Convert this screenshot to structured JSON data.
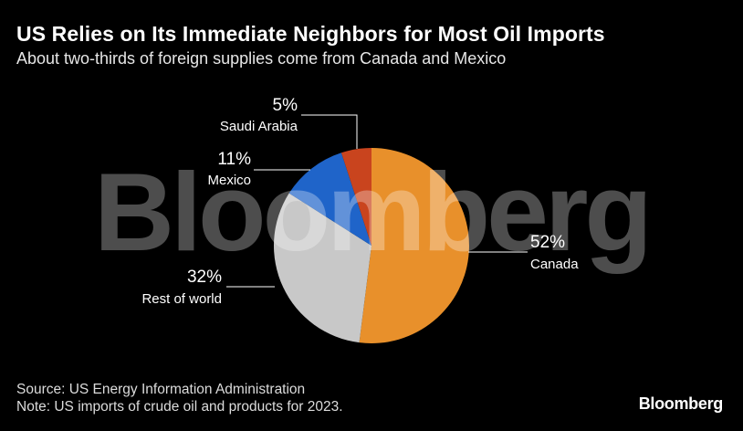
{
  "title": "US Relies on Its Immediate Neighbors for Most Oil Imports",
  "subtitle": "About two-thirds of foreign supplies come from Canada and Mexico",
  "watermark": "Bloomberg",
  "source": "Source: US Energy Information Administration",
  "note": "Note: US imports of crude oil and products for 2023.",
  "brand": "Bloomberg",
  "chart_data": {
    "type": "pie",
    "start_angle_deg": 0,
    "direction": "clockwise",
    "slices": [
      {
        "key": "canada",
        "label": "Canada",
        "value": 52,
        "value_label": "52%",
        "color": "#e8902b"
      },
      {
        "key": "rest-of-world",
        "label": "Rest of world",
        "value": 32,
        "value_label": "32%",
        "color": "#c8c8c8"
      },
      {
        "key": "mexico",
        "label": "Mexico",
        "value": 11,
        "value_label": "11%",
        "color": "#1f64c9"
      },
      {
        "key": "saudi-arabia",
        "label": "Saudi Arabia",
        "value": 5,
        "value_label": "5%",
        "color": "#c9441e"
      }
    ]
  }
}
